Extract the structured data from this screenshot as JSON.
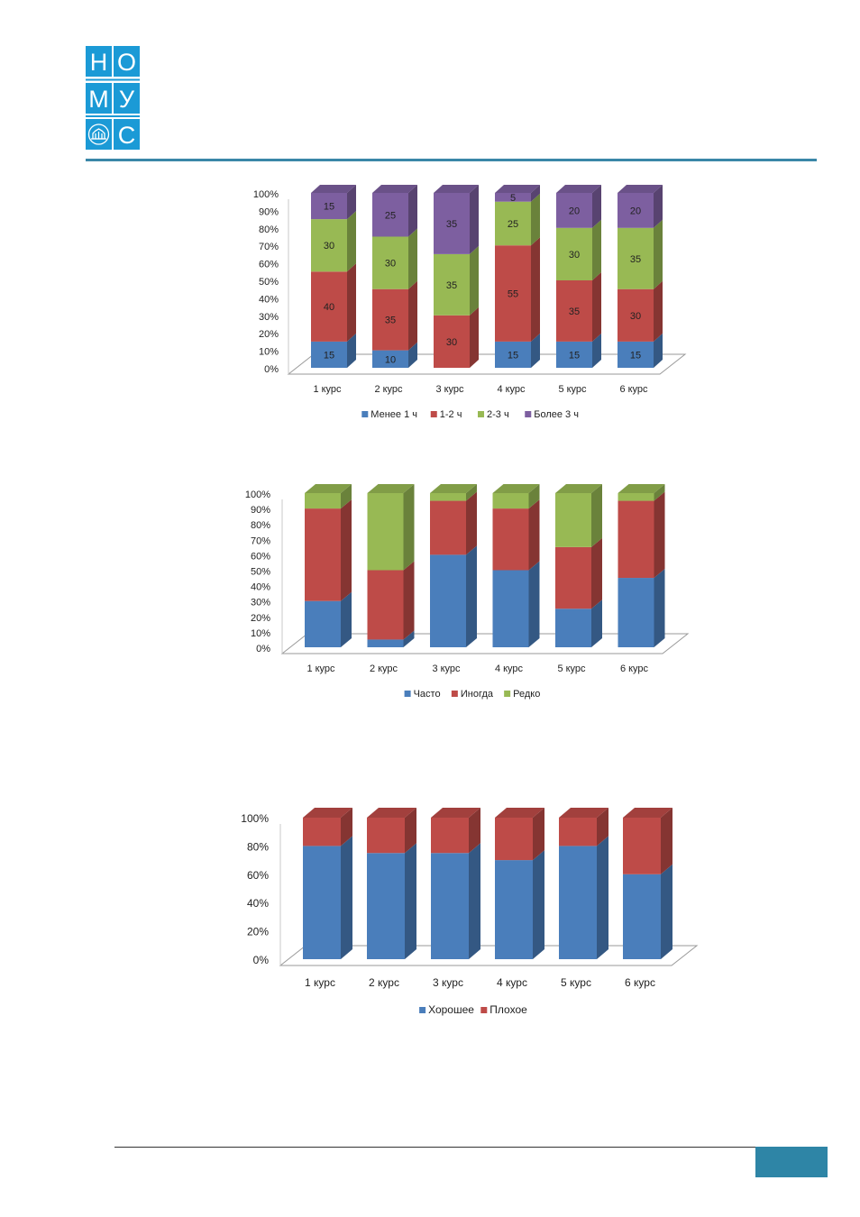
{
  "logo": {
    "tiles": [
      "Н",
      "О",
      "М",
      "У",
      "",
      "С"
    ],
    "color": "#1b9ad6"
  },
  "page_number": "",
  "chart_data": [
    {
      "type": "bar",
      "stacked": true,
      "percent": true,
      "categories": [
        "1 курс",
        "2 курс",
        "3 курс",
        "4 курс",
        "5 курс",
        "6 курс"
      ],
      "series": [
        {
          "name": "Менее 1 ч",
          "values": [
            15,
            10,
            0,
            15,
            15,
            15
          ],
          "color": "#4a7ebb"
        },
        {
          "name": "1-2 ч",
          "values": [
            40,
            35,
            30,
            55,
            35,
            30
          ],
          "color": "#be4b48"
        },
        {
          "name": "2-3 ч",
          "values": [
            30,
            30,
            35,
            25,
            30,
            35
          ],
          "color": "#98b954"
        },
        {
          "name": "Более 3 ч",
          "values": [
            15,
            25,
            35,
            5,
            20,
            20
          ],
          "color": "#7d5fa0"
        }
      ],
      "yticks": [
        "0%",
        "10%",
        "20%",
        "30%",
        "40%",
        "50%",
        "60%",
        "70%",
        "80%",
        "90%",
        "100%"
      ],
      "ylim": [
        0,
        100
      ],
      "data_labels": true,
      "legend_position": "bottom"
    },
    {
      "type": "bar",
      "stacked": true,
      "percent": true,
      "categories": [
        "1 курс",
        "2 курс",
        "3 курс",
        "4 курс",
        "5 курс",
        "6 курс"
      ],
      "series": [
        {
          "name": "Часто",
          "values": [
            30,
            5,
            60,
            50,
            25,
            45
          ],
          "color": "#4a7ebb"
        },
        {
          "name": "Иногда",
          "values": [
            60,
            45,
            35,
            40,
            40,
            50
          ],
          "color": "#be4b48"
        },
        {
          "name": "Редко",
          "values": [
            10,
            50,
            5,
            10,
            35,
            5
          ],
          "color": "#98b954"
        }
      ],
      "yticks": [
        "0%",
        "10%",
        "20%",
        "30%",
        "40%",
        "50%",
        "60%",
        "70%",
        "80%",
        "90%",
        "100%"
      ],
      "ylim": [
        0,
        100
      ],
      "data_labels": false,
      "legend_position": "bottom"
    },
    {
      "type": "bar",
      "stacked": true,
      "percent": true,
      "categories": [
        "1 курс",
        "2 курс",
        "3 курс",
        "4 курс",
        "5 курс",
        "6 курс"
      ],
      "series": [
        {
          "name": "Хорошее",
          "values": [
            80,
            75,
            75,
            70,
            80,
            60
          ],
          "color": "#4a7ebb"
        },
        {
          "name": "Плохое",
          "values": [
            20,
            25,
            25,
            30,
            20,
            40
          ],
          "color": "#be4b48"
        }
      ],
      "yticks": [
        "0%",
        "20%",
        "40%",
        "60%",
        "80%",
        "100%"
      ],
      "ylim": [
        0,
        100
      ],
      "data_labels": false,
      "legend_position": "bottom"
    }
  ]
}
